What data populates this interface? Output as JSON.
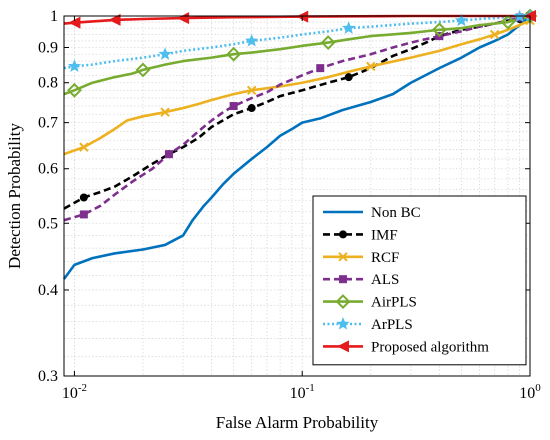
{
  "chart_data": {
    "type": "line",
    "title": "",
    "xlabel": "False Alarm Probability",
    "ylabel": "Detection Probability",
    "xscale": "log",
    "yscale": "log",
    "xlim": [
      0.009,
      1
    ],
    "ylim": [
      0.3,
      1
    ],
    "x_ticks": [
      {
        "value": 0.01,
        "label": "10",
        "exp": "-2"
      },
      {
        "value": 0.1,
        "label": "10",
        "exp": "-1"
      },
      {
        "value": 1,
        "label": "10",
        "exp": "0"
      }
    ],
    "y_ticks": [
      {
        "value": 0.3,
        "label": "0.3"
      },
      {
        "value": 0.4,
        "label": "0.4"
      },
      {
        "value": 0.5,
        "label": "0.5"
      },
      {
        "value": 0.6,
        "label": "0.6"
      },
      {
        "value": 0.7,
        "label": "0.7"
      },
      {
        "value": 0.8,
        "label": "0.8"
      },
      {
        "value": 0.9,
        "label": "0.9"
      },
      {
        "value": 1,
        "label": "1"
      }
    ],
    "grid": true,
    "legend_position": "bottom-right",
    "series": [
      {
        "name": "Non BC",
        "color": "#0072BD",
        "dash": "solid",
        "marker": "none",
        "x": [
          0.009,
          0.01,
          0.012,
          0.015,
          0.02,
          0.025,
          0.03,
          0.033,
          0.037,
          0.04,
          0.045,
          0.05,
          0.06,
          0.07,
          0.08,
          0.09,
          0.1,
          0.12,
          0.15,
          0.2,
          0.25,
          0.3,
          0.4,
          0.5,
          0.6,
          0.7,
          0.8,
          0.9,
          1
        ],
        "y": [
          0.415,
          0.435,
          0.445,
          0.452,
          0.458,
          0.465,
          0.48,
          0.505,
          0.53,
          0.545,
          0.57,
          0.59,
          0.62,
          0.645,
          0.67,
          0.685,
          0.7,
          0.71,
          0.73,
          0.75,
          0.77,
          0.8,
          0.84,
          0.87,
          0.9,
          0.92,
          0.94,
          0.97,
          1
        ]
      },
      {
        "name": "IMF",
        "color": "#000000",
        "dash": "dashed",
        "marker": "circle",
        "x": [
          0.009,
          0.011,
          0.013,
          0.015,
          0.018,
          0.022,
          0.026,
          0.03,
          0.035,
          0.04,
          0.05,
          0.06,
          0.07,
          0.08,
          0.1,
          0.13,
          0.16,
          0.2,
          0.25,
          0.3,
          0.35,
          0.4,
          0.5,
          0.6,
          0.7,
          0.8,
          0.9,
          1
        ],
        "y": [
          0.525,
          0.545,
          0.555,
          0.565,
          0.585,
          0.61,
          0.63,
          0.645,
          0.665,
          0.69,
          0.72,
          0.735,
          0.75,
          0.765,
          0.78,
          0.8,
          0.815,
          0.84,
          0.875,
          0.895,
          0.915,
          0.935,
          0.955,
          0.965,
          0.975,
          0.985,
          0.99,
          1
        ]
      },
      {
        "name": "RCF",
        "color": "#EDB120",
        "dash": "solid",
        "marker": "x",
        "x": [
          0.009,
          0.011,
          0.013,
          0.015,
          0.017,
          0.02,
          0.025,
          0.03,
          0.035,
          0.04,
          0.05,
          0.06,
          0.08,
          0.1,
          0.13,
          0.16,
          0.2,
          0.3,
          0.4,
          0.5,
          0.6,
          0.7,
          0.8,
          0.9,
          1
        ],
        "y": [
          0.63,
          0.645,
          0.665,
          0.685,
          0.705,
          0.715,
          0.725,
          0.735,
          0.745,
          0.755,
          0.77,
          0.78,
          0.79,
          0.8,
          0.815,
          0.83,
          0.845,
          0.87,
          0.89,
          0.91,
          0.925,
          0.94,
          0.955,
          0.97,
          0.985
        ]
      },
      {
        "name": "ALS",
        "color": "#7E2F8E",
        "dash": "dashed",
        "marker": "square",
        "x": [
          0.009,
          0.011,
          0.013,
          0.015,
          0.018,
          0.022,
          0.026,
          0.03,
          0.035,
          0.04,
          0.045,
          0.05,
          0.06,
          0.07,
          0.08,
          0.1,
          0.12,
          0.15,
          0.2,
          0.25,
          0.3,
          0.4,
          0.5,
          0.6,
          0.7,
          0.8,
          0.9,
          1
        ],
        "y": [
          0.505,
          0.515,
          0.53,
          0.55,
          0.575,
          0.6,
          0.63,
          0.65,
          0.68,
          0.705,
          0.725,
          0.74,
          0.76,
          0.775,
          0.795,
          0.82,
          0.84,
          0.86,
          0.88,
          0.9,
          0.915,
          0.935,
          0.95,
          0.965,
          0.975,
          0.985,
          0.995,
          1
        ]
      },
      {
        "name": "AirPLS",
        "color": "#77AC30",
        "dash": "solid",
        "marker": "diamond",
        "x": [
          0.009,
          0.01,
          0.012,
          0.015,
          0.018,
          0.02,
          0.025,
          0.03,
          0.04,
          0.05,
          0.06,
          0.08,
          0.1,
          0.13,
          0.16,
          0.2,
          0.3,
          0.4,
          0.5,
          0.6,
          0.7,
          0.8,
          0.9,
          1
        ],
        "y": [
          0.77,
          0.78,
          0.8,
          0.815,
          0.825,
          0.835,
          0.85,
          0.86,
          0.87,
          0.88,
          0.885,
          0.895,
          0.905,
          0.915,
          0.925,
          0.935,
          0.945,
          0.955,
          0.96,
          0.97,
          0.975,
          0.98,
          0.99,
          1
        ]
      },
      {
        "name": "ArPLS",
        "color": "#4DBEEE",
        "dash": "dotted",
        "marker": "star",
        "x": [
          0.009,
          0.01,
          0.012,
          0.015,
          0.02,
          0.025,
          0.03,
          0.04,
          0.05,
          0.06,
          0.08,
          0.1,
          0.13,
          0.16,
          0.2,
          0.3,
          0.4,
          0.5,
          0.6,
          0.7,
          0.8,
          0.9,
          1
        ],
        "y": [
          0.84,
          0.845,
          0.85,
          0.86,
          0.87,
          0.88,
          0.89,
          0.9,
          0.91,
          0.92,
          0.93,
          0.94,
          0.95,
          0.96,
          0.965,
          0.975,
          0.98,
          0.985,
          0.99,
          0.993,
          0.996,
          0.998,
          1
        ]
      },
      {
        "name": "Proposed algorithm",
        "color": "#E41A1C",
        "dash": "solid",
        "marker": "triangle-left",
        "x": [
          0.009,
          0.01,
          0.012,
          0.015,
          0.02,
          0.03,
          0.05,
          0.1,
          0.3,
          1
        ],
        "y": [
          0.975,
          0.978,
          0.982,
          0.987,
          0.99,
          0.993,
          0.996,
          0.998,
          1,
          1
        ]
      }
    ]
  }
}
